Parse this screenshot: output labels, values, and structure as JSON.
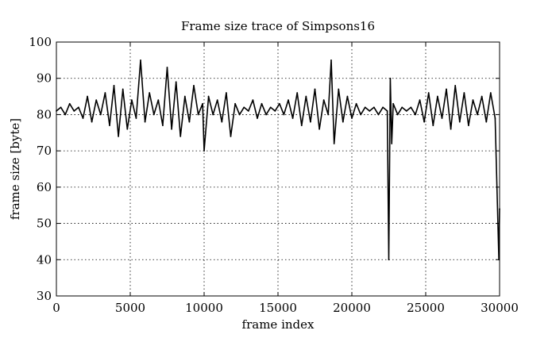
{
  "chart_data": {
    "type": "line",
    "title": "Frame size trace of Simpsons16",
    "xlabel": "frame index",
    "ylabel": "frame size [byte]",
    "xlim": [
      0,
      30000
    ],
    "ylim": [
      30,
      100
    ],
    "xticks": [
      0,
      5000,
      10000,
      15000,
      20000,
      25000,
      30000
    ],
    "yticks": [
      30,
      40,
      50,
      60,
      70,
      80,
      90,
      100
    ],
    "grid": true,
    "legend": "none",
    "line_color": "#000000",
    "series": [
      {
        "x": [
          0,
          300,
          600,
          900,
          1200,
          1500,
          1800,
          2100,
          2400,
          2700,
          3000,
          3300,
          3600,
          3900,
          4200,
          4500,
          4800,
          5100,
          5400,
          5700,
          6000,
          6300,
          6600,
          6900,
          7200,
          7500,
          7800,
          8100,
          8400,
          8700,
          9000,
          9300,
          9600,
          9900,
          10000,
          10300,
          10600,
          10900,
          11200,
          11500,
          11800,
          12100,
          12400,
          12700,
          13000,
          13300,
          13600,
          13900,
          14200,
          14500,
          14800,
          15100,
          15400,
          15700,
          16000,
          16300,
          16600,
          16900,
          17200,
          17500,
          17800,
          18100,
          18400,
          18600,
          18800,
          19100,
          19400,
          19700,
          20000,
          20300,
          20600,
          20900,
          21200,
          21500,
          21800,
          22100,
          22400,
          22500,
          22600,
          22700,
          22800,
          23100,
          23400,
          23700,
          24000,
          24300,
          24600,
          24900,
          25200,
          25500,
          25800,
          26100,
          26400,
          26700,
          27000,
          27300,
          27600,
          27900,
          28200,
          28500,
          28800,
          29100,
          29400,
          29700,
          29950,
          30000
        ],
        "y": [
          81,
          82,
          80,
          83,
          81,
          82,
          79,
          85,
          78,
          84,
          80,
          86,
          77,
          88,
          74,
          87,
          76,
          84,
          79,
          95,
          78,
          86,
          80,
          84,
          77,
          93,
          76,
          89,
          74,
          85,
          78,
          88,
          80,
          83,
          70,
          85,
          80,
          84,
          78,
          86,
          74,
          83,
          80,
          82,
          81,
          84,
          79,
          83,
          80,
          82,
          81,
          83,
          80,
          84,
          79,
          86,
          77,
          85,
          78,
          87,
          76,
          84,
          80,
          95,
          72,
          87,
          78,
          85,
          79,
          83,
          80,
          82,
          81,
          82,
          80,
          82,
          81,
          40,
          90,
          72,
          83,
          80,
          82,
          81,
          82,
          80,
          84,
          78,
          86,
          77,
          85,
          79,
          87,
          76,
          88,
          78,
          86,
          77,
          84,
          80,
          85,
          78,
          86,
          79,
          40,
          54
        ]
      }
    ]
  }
}
